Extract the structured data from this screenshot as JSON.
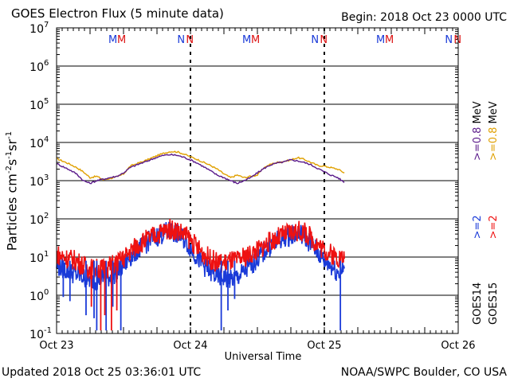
{
  "header": {
    "title": "GOES Electron Flux (5 minute data)",
    "begin": "Begin: 2018 Oct 23 0000 UTC"
  },
  "footer": {
    "updated": "Updated 2018 Oct 25 03:36:01 UTC",
    "credit": "NOAA/SWPC Boulder, CO USA"
  },
  "colors": {
    "goes14_ge2": "#1a3ad8",
    "goes15_ge2": "#ee1111",
    "goes14_ge08": "#5a1a8a",
    "goes15_ge08": "#e0a000",
    "marker_m14": "#1a3ad8",
    "marker_m15": "#d11",
    "marker_n14": "#1a3ad8",
    "marker_n15": "#d11"
  },
  "legend": {
    "goes14": "GOES14",
    "goes15": "GOES15",
    "ge2": ">=2",
    "ge08": ">=0.8",
    "unit": "MeV"
  },
  "markers": {
    "m": "M",
    "n": "N",
    "positions_days": [
      0.45,
      1.45,
      2.45,
      0.96,
      1.96,
      2.96
    ]
  },
  "chart_data": {
    "type": "line",
    "title": "GOES Electron Flux (5 minute data)",
    "xlabel": "Universal Time",
    "ylabel": "Particles cm",
    "ylabel_sup1": "-2",
    "ylabel_mid1": "s",
    "ylabel_sup2": "-1",
    "ylabel_mid2": "sr",
    "ylabel_sup3": "-1",
    "x_ticks": [
      "Oct 23",
      "Oct 24",
      "Oct 25",
      "Oct 26"
    ],
    "y_scale": "log",
    "ylim": [
      0.1,
      10000000
    ],
    "y_tick_labels": [
      {
        "base": "10",
        "exp": "7"
      },
      {
        "base": "10",
        "exp": "6"
      },
      {
        "base": "10",
        "exp": "5"
      },
      {
        "base": "10",
        "exp": "4"
      },
      {
        "base": "10",
        "exp": "3"
      },
      {
        "base": "10",
        "exp": "2"
      },
      {
        "base": "10",
        "exp": "1"
      },
      {
        "base": "10",
        "exp": "0"
      },
      {
        "base": "10",
        "exp": "-1"
      }
    ],
    "threshold": 1000,
    "grid": true,
    "series": [
      {
        "name": "GOES15 >=0.8 MeV",
        "color": "#e0a000",
        "x": [
          0.0,
          0.05,
          0.1,
          0.15,
          0.2,
          0.25,
          0.3,
          0.35,
          0.4,
          0.45,
          0.5,
          0.55,
          0.6,
          0.65,
          0.7,
          0.75,
          0.8,
          0.85,
          0.9,
          0.95,
          1.0,
          1.05,
          1.1,
          1.15,
          1.2,
          1.25,
          1.3,
          1.35,
          1.4,
          1.45,
          1.5,
          1.55,
          1.6,
          1.65,
          1.7,
          1.75,
          1.8,
          1.85,
          1.9,
          1.95,
          2.0,
          2.05,
          2.1,
          2.15
        ],
        "y": [
          3800,
          3200,
          2700,
          2200,
          1700,
          1200,
          1300,
          1050,
          1150,
          1250,
          1500,
          2400,
          2800,
          3200,
          3800,
          4500,
          5200,
          5800,
          5700,
          5000,
          4200,
          3600,
          3000,
          2500,
          2000,
          1500,
          1200,
          1400,
          1200,
          1300,
          1400,
          2200,
          2700,
          3000,
          3200,
          3500,
          4000,
          3600,
          3000,
          2500,
          2400,
          2200,
          2000,
          1600
        ]
      },
      {
        "name": "GOES14 >=0.8 MeV",
        "color": "#5a1a8a",
        "x": [
          0.0,
          0.05,
          0.1,
          0.15,
          0.2,
          0.25,
          0.3,
          0.35,
          0.4,
          0.45,
          0.5,
          0.55,
          0.6,
          0.65,
          0.7,
          0.75,
          0.8,
          0.85,
          0.9,
          0.95,
          1.0,
          1.05,
          1.1,
          1.15,
          1.2,
          1.25,
          1.3,
          1.35,
          1.4,
          1.45,
          1.5,
          1.55,
          1.6,
          1.65,
          1.7,
          1.75,
          1.8,
          1.85,
          1.9,
          1.95,
          2.0,
          2.05,
          2.1,
          2.15
        ],
        "y": [
          2800,
          2300,
          1900,
          1500,
          1000,
          850,
          1000,
          1100,
          1200,
          1300,
          1600,
          2200,
          2600,
          3000,
          3500,
          4100,
          4600,
          4800,
          4600,
          4100,
          3500,
          2900,
          2300,
          1800,
          1400,
          1200,
          1000,
          850,
          1000,
          1200,
          1600,
          2100,
          2600,
          2900,
          3100,
          3500,
          3300,
          3000,
          2600,
          2100,
          1700,
          1400,
          1200,
          900
        ]
      },
      {
        "name": "GOES14 >=2 MeV",
        "color": "#1a3ad8",
        "x": [
          0.0,
          0.05,
          0.1,
          0.15,
          0.2,
          0.25,
          0.3,
          0.35,
          0.4,
          0.45,
          0.5,
          0.55,
          0.6,
          0.65,
          0.7,
          0.75,
          0.8,
          0.85,
          0.9,
          0.95,
          1.0,
          1.05,
          1.1,
          1.15,
          1.2,
          1.25,
          1.3,
          1.35,
          1.4,
          1.45,
          1.5,
          1.55,
          1.6,
          1.65,
          1.7,
          1.75,
          1.8,
          1.85,
          1.9,
          1.95,
          2.0,
          2.05,
          2.1,
          2.15
        ],
        "y": [
          6,
          5,
          4,
          3.5,
          3,
          2.5,
          2.5,
          3,
          3,
          4,
          6,
          10,
          15,
          20,
          28,
          35,
          42,
          48,
          40,
          30,
          18,
          10,
          6,
          4,
          3,
          3,
          2.5,
          3,
          4,
          6,
          9,
          14,
          20,
          26,
          32,
          38,
          42,
          36,
          22,
          14,
          8,
          6,
          4,
          5
        ]
      },
      {
        "name": "GOES15 >=2 MeV",
        "color": "#ee1111",
        "x": [
          0.0,
          0.05,
          0.1,
          0.15,
          0.2,
          0.25,
          0.3,
          0.35,
          0.4,
          0.45,
          0.5,
          0.55,
          0.6,
          0.65,
          0.7,
          0.75,
          0.8,
          0.85,
          0.9,
          0.95,
          1.0,
          1.05,
          1.1,
          1.15,
          1.2,
          1.25,
          1.3,
          1.35,
          1.4,
          1.45,
          1.5,
          1.55,
          1.6,
          1.65,
          1.7,
          1.75,
          1.8,
          1.85,
          1.9,
          1.95,
          2.0,
          2.05,
          2.1,
          2.15
        ],
        "y": [
          12,
          10,
          9,
          8,
          6,
          5,
          5,
          5,
          6,
          7,
          9,
          14,
          20,
          26,
          32,
          40,
          48,
          55,
          50,
          40,
          28,
          18,
          12,
          9,
          7,
          7,
          8,
          8,
          10,
          12,
          15,
          20,
          26,
          32,
          38,
          44,
          48,
          44,
          32,
          22,
          15,
          12,
          10,
          9
        ]
      }
    ],
    "dips_goes14_ge2": [
      {
        "x": 0.3,
        "y": 0.12
      },
      {
        "x": 0.37,
        "y": 0.12
      },
      {
        "x": 0.48,
        "y": 0.12
      },
      {
        "x": 0.22,
        "y": 0.3
      },
      {
        "x": 0.28,
        "y": 0.25
      },
      {
        "x": 1.23,
        "y": 0.12
      },
      {
        "x": 1.28,
        "y": 0.4
      },
      {
        "x": 2.12,
        "y": 0.12
      },
      {
        "x": 0.05,
        "y": 0.9
      },
      {
        "x": 0.1,
        "y": 0.7
      },
      {
        "x": 0.42,
        "y": 0.5
      },
      {
        "x": 1.33,
        "y": 0.8
      }
    ],
    "dips_goes15_ge2": [
      {
        "x": 0.33,
        "y": 0.12
      },
      {
        "x": 0.41,
        "y": 0.12
      },
      {
        "x": 0.26,
        "y": 0.5
      },
      {
        "x": 0.36,
        "y": 0.3
      },
      {
        "x": 0.45,
        "y": 0.4
      }
    ]
  }
}
